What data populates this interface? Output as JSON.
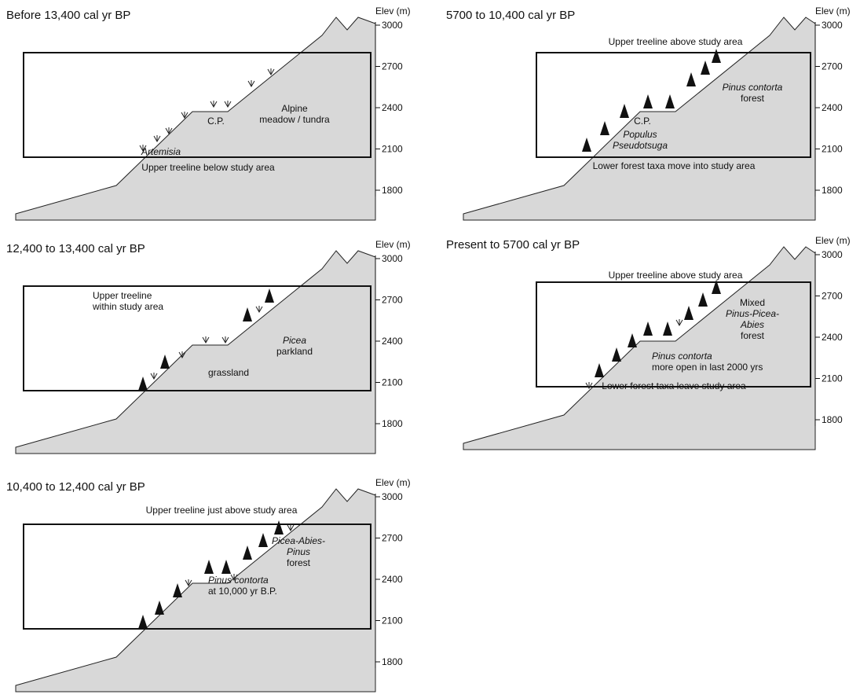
{
  "axis_label": "Elev (m)",
  "ticks": [
    3000,
    2700,
    2400,
    2100,
    1800
  ],
  "panels": [
    {
      "title": "Before 13,400 cal yr BP",
      "labels": [
        [
          "Alpine",
          "meadow / tundra"
        ],
        [
          "C.P."
        ],
        [
          "Artemisia"
        ],
        [
          "Upper treeline below study area"
        ]
      ]
    },
    {
      "title": "12,400 to 13,400 cal yr BP",
      "labels": [
        [
          "Upper treeline",
          "within study area"
        ],
        [
          "Picea",
          "parkland"
        ],
        [
          "grassland"
        ]
      ]
    },
    {
      "title": "10,400 to 12,400 cal yr BP",
      "labels": [
        [
          "Upper treeline just above study area"
        ],
        [
          "Picea-Abies-",
          "Pinus",
          "forest"
        ],
        [
          "Pinus contorta",
          "at 10,000 yr B.P."
        ]
      ]
    },
    {
      "title": "5700 to 10,400 cal yr BP",
      "labels": [
        [
          "Upper treeline above study area"
        ],
        [
          "Pinus contorta",
          "forest"
        ],
        [
          "C.P."
        ],
        [
          "Populus",
          "Pseudotsuga"
        ],
        [
          "Lower forest taxa move into study area"
        ]
      ]
    },
    {
      "title": "Present to 5700 cal yr BP",
      "labels": [
        [
          "Upper treeline above study area"
        ],
        [
          "Mixed",
          "Pinus-Picea-",
          "Abies",
          "forest"
        ],
        [
          "Pinus contorta",
          "more open in last 2000 yrs"
        ],
        [
          "Lower forest taxa leave study area"
        ]
      ]
    }
  ]
}
